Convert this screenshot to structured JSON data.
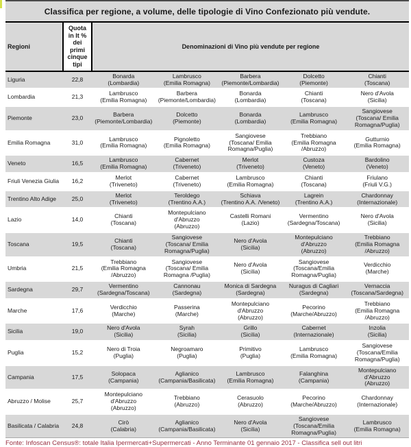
{
  "colors": {
    "row_alt_bg": "#d8d8d8",
    "header_bg": "#d8d8d8",
    "border_black": "#000000",
    "footer_text": "#992e40",
    "edge_artifact": "#d5e24b"
  },
  "chart_data": {
    "type": "table",
    "title": "Classifica per regione, a volume, delle tipologie di Vino Confezionato più vendute.",
    "columns": {
      "region": "Regioni",
      "quota": "Quota in lt % dei primi cinque tipi",
      "wines": "Denominazioni di Vino più vendute per regione"
    },
    "rows": [
      {
        "region": "Liguria",
        "quota": "22,8",
        "wines": [
          {
            "name": "Bonarda",
            "origin": "(Lombardia)"
          },
          {
            "name": "Lambrusco",
            "origin": "(Emilia Romagna)"
          },
          {
            "name": "Barbera",
            "origin": "(Piemonte/Lombardia)"
          },
          {
            "name": "Dolcetto",
            "origin": "(Piemonte)"
          },
          {
            "name": "Chianti",
            "origin": "(Toscana)"
          }
        ]
      },
      {
        "region": "Lombardia",
        "quota": "21,3",
        "wines": [
          {
            "name": "Lambrusco",
            "origin": "(Emilia Romagna)"
          },
          {
            "name": "Barbera",
            "origin": "(Piemonte/Lombardia)"
          },
          {
            "name": "Bonarda",
            "origin": "(Lombardia)"
          },
          {
            "name": "Chianti",
            "origin": "(Toscana)"
          },
          {
            "name": "Nero d'Avola",
            "origin": "(Sicilia)"
          }
        ]
      },
      {
        "region": "Piemonte",
        "quota": "23,0",
        "wines": [
          {
            "name": "Barbera",
            "origin": "(Piemonte/Lombardia)"
          },
          {
            "name": "Dolcetto",
            "origin": "(Piemonte)"
          },
          {
            "name": "Bonarda",
            "origin": "(Lombardia)"
          },
          {
            "name": "Lambrusco",
            "origin": "(Emilia Romagna)"
          },
          {
            "name": "Sangiovese",
            "origin": "(Toscana/ Emilia Romagna/Puglia)"
          }
        ]
      },
      {
        "region": "Emilia Romagna",
        "quota": "31,0",
        "wines": [
          {
            "name": "Lambrusco",
            "origin": "(Emilia Romagna)"
          },
          {
            "name": "Pignoletto",
            "origin": "(Emilia Romagna)"
          },
          {
            "name": "Sangiovese",
            "origin": "(Toscana/ Emilia Romagna/Puglia)"
          },
          {
            "name": "Trebbiano",
            "origin": "(Emilia Romagna /Abruzzo)"
          },
          {
            "name": "Gutturnio",
            "origin": "(Emilia Romagna)"
          }
        ]
      },
      {
        "region": "Veneto",
        "quota": "16,5",
        "wines": [
          {
            "name": "Lambrusco",
            "origin": "(Emilia Romagna)"
          },
          {
            "name": "Cabernet",
            "origin": "(Triveneto)"
          },
          {
            "name": "Merlot",
            "origin": "(Triveneto)"
          },
          {
            "name": "Custoza",
            "origin": "(Veneto)"
          },
          {
            "name": "Bardolino",
            "origin": "(Veneto)"
          }
        ]
      },
      {
        "region": "Friuli Venezia Giulia",
        "quota": "16,2",
        "wines": [
          {
            "name": "Merlot",
            "origin": "(Triveneto)"
          },
          {
            "name": "Cabernet",
            "origin": "(Triveneto)"
          },
          {
            "name": "Lambrusco",
            "origin": "(Emilia Romagna)"
          },
          {
            "name": "Chianti",
            "origin": "(Toscana)"
          },
          {
            "name": "Friulano",
            "origin": "(Friuli V.G.)"
          }
        ]
      },
      {
        "region": "Trentino Alto Adige",
        "quota": "25,0",
        "wines": [
          {
            "name": "Merlot",
            "origin": "(Triveneto)"
          },
          {
            "name": "Teroldego",
            "origin": "(Trentino A.A.)"
          },
          {
            "name": "Schiava",
            "origin": "(Trentino A.A. /Veneto)"
          },
          {
            "name": "Lagrein",
            "origin": "(Trentino A.A.)"
          },
          {
            "name": "Chardonnay",
            "origin": "(Internazionale)"
          }
        ]
      },
      {
        "region": "Lazio",
        "quota": "14,0",
        "wines": [
          {
            "name": "Chianti",
            "origin": "(Toscana)"
          },
          {
            "name": "Montepulciano d'Abruzzo",
            "origin": "(Abruzzo)"
          },
          {
            "name": "Castelli Romani",
            "origin": "(Lazio)"
          },
          {
            "name": "Vermentino",
            "origin": "(Sardegna/Toscana)"
          },
          {
            "name": "Nero d'Avola",
            "origin": "(Sicilia)"
          }
        ]
      },
      {
        "region": "Toscana",
        "quota": "19,5",
        "wines": [
          {
            "name": "Chianti",
            "origin": "(Toscana)"
          },
          {
            "name": "Sangiovese",
            "origin": "(Toscana/ Emilia Romagna/Puglia)"
          },
          {
            "name": "Nero d'Avola",
            "origin": "(Sicilia)"
          },
          {
            "name": "Montepulciano d'Abruzzo",
            "origin": "(Abruzzo)"
          },
          {
            "name": "Trebbiano",
            "origin": "(Emilia Romagna /Abruzzo)"
          }
        ]
      },
      {
        "region": "Umbria",
        "quota": "21,5",
        "wines": [
          {
            "name": "Trebbiano",
            "origin": "(Emilia Romagna /Abruzzo)"
          },
          {
            "name": "Sangiovese",
            "origin": "(Toscana/ Emilia Romagna /Puglia)"
          },
          {
            "name": "Nero d'Avola",
            "origin": "(Sicilia)"
          },
          {
            "name": "Sangiovese",
            "origin": "(Toscana/Emilia Romagna/Puglia)"
          },
          {
            "name": "Verdicchio",
            "origin": "(Marche)"
          }
        ]
      },
      {
        "region": "Sardegna",
        "quota": "29,7",
        "wines": [
          {
            "name": "Vermentino",
            "origin": "(Sardegna/Toscana)"
          },
          {
            "name": "Cannonau",
            "origin": "(Sardegna)"
          },
          {
            "name": "Monica di Sardegna",
            "origin": "(Sardegna)"
          },
          {
            "name": "Nuragus di Cagliari",
            "origin": "(Sardegna)"
          },
          {
            "name": "Vernaccia",
            "origin": "(Toscana/Sardegna)"
          }
        ]
      },
      {
        "region": "Marche",
        "quota": "17,6",
        "wines": [
          {
            "name": "Verdicchio",
            "origin": "(Marche)"
          },
          {
            "name": "Passerina",
            "origin": "(Marche)"
          },
          {
            "name": "Montepulciano d'Abruzzo",
            "origin": "(Abruzzo)"
          },
          {
            "name": "Pecorino",
            "origin": "(Marche/Abruzzo)"
          },
          {
            "name": "Trebbiano",
            "origin": "(Emilia Romagna /Abruzzo)"
          }
        ]
      },
      {
        "region": "Sicilia",
        "quota": "19,0",
        "wines": [
          {
            "name": "Nero d'Avola",
            "origin": "(Sicilia)"
          },
          {
            "name": "Syrah",
            "origin": "(Sicilia)"
          },
          {
            "name": "Grillo",
            "origin": "(Sicilia)"
          },
          {
            "name": "Cabernet",
            "origin": "(Internazionale)"
          },
          {
            "name": "Inzolia",
            "origin": "(Sicilia)"
          }
        ]
      },
      {
        "region": "Puglia",
        "quota": "15,2",
        "wines": [
          {
            "name": "Nero di Troia",
            "origin": "(Puglia)"
          },
          {
            "name": "Negroamaro",
            "origin": "(Puglia)"
          },
          {
            "name": "Primitivo",
            "origin": "(Puglia)"
          },
          {
            "name": "Lambrusco",
            "origin": "(Emilia Romagna)"
          },
          {
            "name": "Sangiovese",
            "origin": "(Toscana/Emilia Romagna/Puglia)"
          }
        ]
      },
      {
        "region": "Campania",
        "quota": "17,5",
        "wines": [
          {
            "name": "Solopaca",
            "origin": "(Campania)"
          },
          {
            "name": "Aglianico",
            "origin": "(Campania/Basilicata)"
          },
          {
            "name": "Lambrusco",
            "origin": "(Emilia Romagna)"
          },
          {
            "name": "Falanghina",
            "origin": "(Campania)"
          },
          {
            "name": "Montepulciano d'Abruzzo",
            "origin": "(Abruzzo)"
          }
        ]
      },
      {
        "region": "Abruzzo / Molise",
        "quota": "25,7",
        "wines": [
          {
            "name": "Montepulciano d'Abruzzo",
            "origin": "(Abruzzo)"
          },
          {
            "name": "Trebbiano",
            "origin": "(Abruzzo)"
          },
          {
            "name": "Cerasuolo",
            "origin": "(Abruzzo)"
          },
          {
            "name": "Pecorino",
            "origin": "(Marche/Abruzzo)"
          },
          {
            "name": "Chardonnay",
            "origin": "(Internazionale)"
          }
        ]
      },
      {
        "region": "Basilicata / Calabria",
        "quota": "24,8",
        "wines": [
          {
            "name": "Cirò",
            "origin": "(Calabria)"
          },
          {
            "name": "Aglianico",
            "origin": "(Campania/Basilicata)"
          },
          {
            "name": "Nero d'Avola",
            "origin": "(Sicilia)"
          },
          {
            "name": "Sangiovese",
            "origin": "(Toscana/Emilia Romagna/Puglia)"
          },
          {
            "name": "Lambrusco",
            "origin": "(Emilia Romagna)"
          }
        ]
      }
    ],
    "footer": "Fonte: Infoscan Census®: totale Italia Ipermercati+Supermercati - Anno Terminante 01 gennaio 2017 - Classifica sell out litri"
  }
}
